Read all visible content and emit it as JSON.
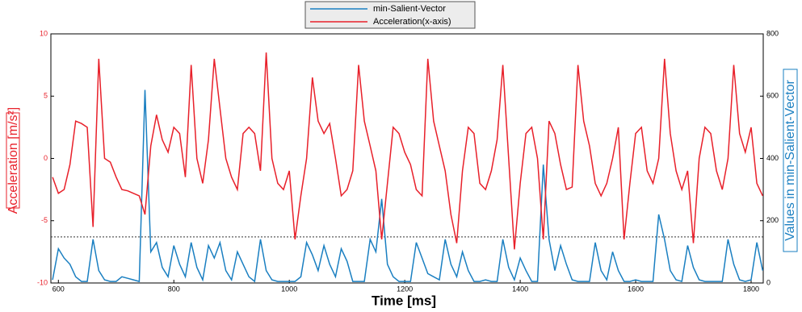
{
  "chart_data": {
    "type": "line",
    "xlabel": "Time [ms]",
    "ylabel": "Acceleration [m/s²]",
    "y2label": "Values in min-Salient-Vector",
    "xlim": [
      587,
      1821
    ],
    "xticks": [
      600,
      800,
      1000,
      1200,
      1400,
      1600,
      1800
    ],
    "ylim": [
      -10,
      10
    ],
    "yticks": [
      -10,
      -5,
      0,
      5,
      10
    ],
    "y2lim": [
      0,
      800
    ],
    "y2ticks": [
      0,
      200,
      400,
      600,
      800
    ],
    "hline": -6.3,
    "legend": "top",
    "x": [
      590,
      600,
      610,
      620,
      630,
      640,
      650,
      660,
      670,
      680,
      690,
      700,
      710,
      720,
      730,
      740,
      750,
      760,
      770,
      780,
      790,
      800,
      810,
      820,
      830,
      840,
      850,
      860,
      870,
      880,
      890,
      900,
      910,
      920,
      930,
      940,
      950,
      960,
      970,
      980,
      990,
      1000,
      1010,
      1020,
      1030,
      1040,
      1050,
      1060,
      1070,
      1080,
      1090,
      1100,
      1110,
      1120,
      1130,
      1140,
      1150,
      1160,
      1170,
      1180,
      1190,
      1200,
      1210,
      1220,
      1230,
      1240,
      1250,
      1260,
      1270,
      1280,
      1290,
      1300,
      1310,
      1320,
      1330,
      1340,
      1350,
      1360,
      1370,
      1380,
      1390,
      1400,
      1410,
      1420,
      1430,
      1440,
      1450,
      1460,
      1470,
      1480,
      1490,
      1500,
      1510,
      1520,
      1530,
      1540,
      1550,
      1560,
      1570,
      1580,
      1590,
      1600,
      1610,
      1620,
      1630,
      1640,
      1650,
      1660,
      1670,
      1680,
      1690,
      1700,
      1710,
      1720,
      1730,
      1740,
      1750,
      1760,
      1770,
      1780,
      1790,
      1800,
      1810,
      1820
    ],
    "series": [
      {
        "name": "min-Salient-Vector",
        "color": "#1a7fc1",
        "axis": "y2",
        "values": [
          10,
          110,
          80,
          60,
          20,
          5,
          5,
          140,
          40,
          10,
          5,
          5,
          20,
          15,
          10,
          5,
          620,
          100,
          130,
          50,
          20,
          120,
          60,
          20,
          130,
          50,
          10,
          120,
          80,
          130,
          40,
          10,
          100,
          60,
          20,
          5,
          140,
          40,
          10,
          5,
          5,
          5,
          5,
          20,
          130,
          90,
          40,
          120,
          60,
          20,
          110,
          70,
          5,
          5,
          5,
          140,
          100,
          270,
          60,
          20,
          5,
          5,
          5,
          130,
          80,
          30,
          20,
          10,
          140,
          60,
          20,
          100,
          40,
          5,
          5,
          10,
          5,
          5,
          140,
          50,
          10,
          80,
          40,
          5,
          5,
          380,
          140,
          40,
          120,
          60,
          10,
          5,
          5,
          5,
          130,
          40,
          10,
          100,
          40,
          5,
          5,
          10,
          5,
          5,
          5,
          220,
          140,
          40,
          10,
          5,
          120,
          50,
          10,
          5,
          5,
          5,
          5,
          140,
          60,
          10,
          5,
          10,
          130,
          40
        ]
      },
      {
        "name": "Acceleration(x-axis)",
        "color": "#e8202a",
        "values": [
          -1.5,
          -2.8,
          -2.5,
          -0.5,
          3,
          2.8,
          2.5,
          -5.5,
          8,
          0,
          -0.3,
          -1.5,
          -2.5,
          -2.6,
          -2.8,
          -3,
          -4.5,
          1,
          3.5,
          1.5,
          0.5,
          2.5,
          2,
          -1.5,
          7.5,
          0,
          -2,
          1.5,
          8,
          4,
          0,
          -1.5,
          -2.5,
          2,
          2.5,
          2,
          -1,
          8.5,
          0,
          -2,
          -2.5,
          -1,
          -6.5,
          -3,
          0,
          6.5,
          3,
          2,
          2.8,
          0,
          -3,
          -2.5,
          -1,
          7.5,
          3,
          1,
          -1,
          -6.5,
          -2,
          2.5,
          2,
          0.5,
          -0.5,
          -2.5,
          -3,
          8,
          3,
          1,
          -1,
          -4.5,
          -6.8,
          -1,
          2.5,
          2,
          -2,
          -2.5,
          -1,
          1.5,
          7.5,
          0,
          -7.3,
          -2,
          2,
          2.5,
          0,
          -6.5,
          3,
          2,
          -0.5,
          -2.5,
          -2.3,
          7.5,
          3,
          1,
          -2,
          -3,
          -2,
          0,
          2.5,
          -6.5,
          -2,
          2,
          2.5,
          -1,
          -2,
          0,
          8,
          2,
          -1,
          -2.5,
          -1,
          -6.8,
          0,
          2.5,
          2,
          -1,
          -2.5,
          0,
          7.5,
          2,
          0.5,
          2.5,
          -2,
          -3
        ]
      }
    ]
  }
}
